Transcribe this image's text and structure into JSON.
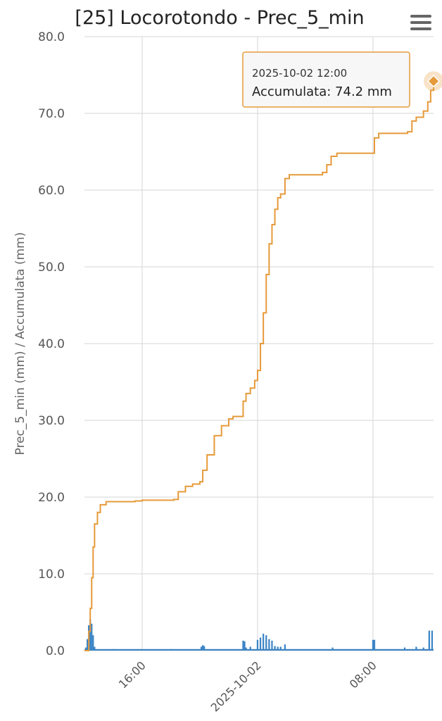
{
  "chart_data": {
    "type": "line+bar",
    "title": "[25] Locorotondo - Prec_5_min",
    "ylabel": "Prec_5_min (mm) / Accumulata (mm)",
    "ylim": [
      0,
      80
    ],
    "yticks": [
      "0.0",
      "10.0",
      "20.0",
      "30.0",
      "40.0",
      "50.0",
      "60.0",
      "70.0",
      "80.0"
    ],
    "xticks": [
      {
        "label": "16:00",
        "x": 2.0
      },
      {
        "label": "2025-10-02",
        "x": 10.0
      },
      {
        "label": "08:00",
        "x": 18.0
      }
    ],
    "xlim": [
      -2.0,
      22.2
    ],
    "grid": true,
    "series": [
      {
        "name": "Prec_5_min",
        "kind": "bar",
        "color": "#3d85c6",
        "points": [
          {
            "x": -1.9,
            "y": 0.4
          },
          {
            "x": -1.8,
            "y": 1.5
          },
          {
            "x": -1.7,
            "y": 3.3
          },
          {
            "x": -1.6,
            "y": 4.1
          },
          {
            "x": -1.5,
            "y": 3.5
          },
          {
            "x": -1.4,
            "y": 2.0
          },
          {
            "x": -1.3,
            "y": 0.5
          },
          {
            "x": 0.0,
            "y": 0.2
          },
          {
            "x": 4.0,
            "y": 0.2
          },
          {
            "x": 6.1,
            "y": 0.5
          },
          {
            "x": 6.2,
            "y": 0.7
          },
          {
            "x": 6.3,
            "y": 0.6
          },
          {
            "x": 9.0,
            "y": 1.3
          },
          {
            "x": 9.1,
            "y": 1.2
          },
          {
            "x": 9.2,
            "y": 0.4
          },
          {
            "x": 9.5,
            "y": 0.5
          },
          {
            "x": 10.0,
            "y": 1.4
          },
          {
            "x": 10.2,
            "y": 1.7
          },
          {
            "x": 10.4,
            "y": 2.2
          },
          {
            "x": 10.6,
            "y": 2.0
          },
          {
            "x": 10.8,
            "y": 1.5
          },
          {
            "x": 11.0,
            "y": 1.3
          },
          {
            "x": 11.2,
            "y": 0.6
          },
          {
            "x": 11.4,
            "y": 0.5
          },
          {
            "x": 11.6,
            "y": 0.5
          },
          {
            "x": 11.9,
            "y": 0.8
          },
          {
            "x": 15.2,
            "y": 0.4
          },
          {
            "x": 18.0,
            "y": 1.4
          },
          {
            "x": 18.1,
            "y": 1.4
          },
          {
            "x": 20.2,
            "y": 0.4
          },
          {
            "x": 21.0,
            "y": 0.5
          },
          {
            "x": 21.5,
            "y": 0.4
          },
          {
            "x": 21.9,
            "y": 2.6
          },
          {
            "x": 22.1,
            "y": 2.6
          }
        ]
      },
      {
        "name": "Accumulata",
        "kind": "line",
        "color": "#e69a3a",
        "points": [
          {
            "x": -2.0,
            "y": 0.0
          },
          {
            "x": -1.7,
            "y": 2.5
          },
          {
            "x": -1.6,
            "y": 5.5
          },
          {
            "x": -1.5,
            "y": 9.5
          },
          {
            "x": -1.4,
            "y": 13.5
          },
          {
            "x": -1.3,
            "y": 16.5
          },
          {
            "x": -1.1,
            "y": 18.0
          },
          {
            "x": -0.9,
            "y": 19.0
          },
          {
            "x": -0.5,
            "y": 19.4
          },
          {
            "x": 1.5,
            "y": 19.5
          },
          {
            "x": 2.0,
            "y": 19.6
          },
          {
            "x": 4.2,
            "y": 19.7
          },
          {
            "x": 4.5,
            "y": 20.7
          },
          {
            "x": 5.0,
            "y": 21.4
          },
          {
            "x": 5.5,
            "y": 21.7
          },
          {
            "x": 6.0,
            "y": 22.0
          },
          {
            "x": 6.2,
            "y": 23.5
          },
          {
            "x": 6.5,
            "y": 25.5
          },
          {
            "x": 7.0,
            "y": 28.0
          },
          {
            "x": 7.5,
            "y": 29.3
          },
          {
            "x": 8.0,
            "y": 30.2
          },
          {
            "x": 8.3,
            "y": 30.5
          },
          {
            "x": 8.9,
            "y": 30.5
          },
          {
            "x": 9.0,
            "y": 32.5
          },
          {
            "x": 9.2,
            "y": 33.5
          },
          {
            "x": 9.5,
            "y": 34.2
          },
          {
            "x": 9.8,
            "y": 35.2
          },
          {
            "x": 10.0,
            "y": 36.5
          },
          {
            "x": 10.2,
            "y": 40.0
          },
          {
            "x": 10.4,
            "y": 44.0
          },
          {
            "x": 10.6,
            "y": 49.0
          },
          {
            "x": 10.8,
            "y": 53.0
          },
          {
            "x": 11.0,
            "y": 55.5
          },
          {
            "x": 11.2,
            "y": 57.5
          },
          {
            "x": 11.4,
            "y": 59.0
          },
          {
            "x": 11.6,
            "y": 59.5
          },
          {
            "x": 11.9,
            "y": 61.5
          },
          {
            "x": 12.2,
            "y": 62.0
          },
          {
            "x": 14.5,
            "y": 62.3
          },
          {
            "x": 14.8,
            "y": 63.3
          },
          {
            "x": 15.1,
            "y": 64.4
          },
          {
            "x": 15.5,
            "y": 64.8
          },
          {
            "x": 17.9,
            "y": 64.8
          },
          {
            "x": 18.1,
            "y": 66.8
          },
          {
            "x": 18.4,
            "y": 67.4
          },
          {
            "x": 20.4,
            "y": 67.6
          },
          {
            "x": 20.7,
            "y": 69.0
          },
          {
            "x": 21.0,
            "y": 69.5
          },
          {
            "x": 21.5,
            "y": 70.3
          },
          {
            "x": 21.8,
            "y": 71.5
          },
          {
            "x": 22.0,
            "y": 73.0
          },
          {
            "x": 22.2,
            "y": 74.2
          }
        ]
      }
    ]
  },
  "tooltip": {
    "date": "2025-10-02 12:00",
    "text": "Accumulata: 74.2 mm",
    "point": {
      "x": 22.2,
      "y": 74.2
    }
  },
  "menu": {
    "icon": "hamburger-menu-icon",
    "color": "#666666"
  },
  "colors": {
    "grid": "#d6d6d6",
    "tooltip_border": "#e69a3a",
    "tooltip_bg": "#f7f7f7"
  }
}
